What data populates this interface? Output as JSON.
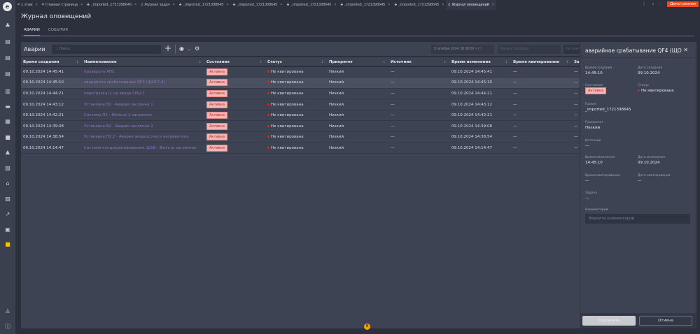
{
  "tabs": [
    {
      "label": "1 этаж",
      "icon": "floor-plan-icon"
    },
    {
      "label": "Главная страница",
      "icon": "floor-plan-icon"
    },
    {
      "label": "_imported_1721398645",
      "icon": "hierarchy-icon"
    },
    {
      "label": "Журнал задач",
      "icon": "document-icon"
    },
    {
      "label": "_imported_1721398645",
      "icon": "hierarchy-icon"
    },
    {
      "label": "_imported_1721398645",
      "icon": "hierarchy-icon"
    },
    {
      "label": "_imported_1721398645",
      "icon": "hierarchy-icon"
    },
    {
      "label": "_imported_1721398645",
      "icon": "hierarchy-icon"
    },
    {
      "label": "_imported_1721398645",
      "icon": "hierarchy-icon"
    },
    {
      "label": "Журнал оповещений",
      "icon": "document-icon",
      "active": true
    }
  ],
  "demo_label": "Демо-режим",
  "page_title": "Журнал оповещений",
  "subtabs": [
    "АВАРИИ",
    "СОБЫТИЯ"
  ],
  "toolbar": {
    "title": "Аварии",
    "search_placeholder": "Поиск",
    "date_from": "9 октября 2024, 00:00:00",
    "date_to_placeholder": "Конец периода",
    "filter_button": "Не квитированные"
  },
  "columns": [
    "Время создания",
    "Наименование",
    "Состояние",
    "Статус",
    "Приоритет",
    "Источник",
    "Время изменения",
    "Время квитирования",
    "За"
  ],
  "rows": [
    [
      "09.10.2024 14:45:41",
      "проверьте АПС",
      "Активна",
      "Не квитирована",
      "Низкий",
      "—",
      "09.10.2024 14:45:41",
      "—",
      "—"
    ],
    [
      "09.10.2024 14:45:10",
      "аварийное срабатывание QF4 (ЩО17-4)",
      "Активна",
      "Не квитирована",
      "Низкий",
      "—",
      "09.10.2024 14:45:10",
      "—",
      "—"
    ],
    [
      "09.10.2024 14:44:21",
      "перегрузка I1 на вводе ГРЩ 1",
      "Активна",
      "Не квитирована",
      "Низкий",
      "—",
      "09.10.2024 14:44:21",
      "—",
      "—"
    ],
    [
      "09.10.2024 14:43:12",
      "Установка В2 - Авария заслонки 1",
      "Активна",
      "Не квитирована",
      "Низкий",
      "—",
      "09.10.2024 14:43:12",
      "—",
      "—"
    ],
    [
      "09.10.2024 14:42:21",
      "Система П1 - Фильтр 1 загрязнен",
      "Активна",
      "Не квитирована",
      "Низкий",
      "—",
      "09.10.2024 14:42:21",
      "—",
      "—"
    ],
    [
      "09.10.2024 14:39:08",
      "Установка В2 - Авария заслонки 2",
      "Активна",
      "Не квитирована",
      "Низкий",
      "—",
      "09.10.2024 14:39:08",
      "—",
      "—"
    ],
    [
      "09.10.2024 14:38:54",
      "Установка П2.2 - Авария жидкостного нагревателя",
      "Активна",
      "Не квитирована",
      "Низкий",
      "—",
      "09.10.2024 14:38:54",
      "—",
      "—"
    ],
    [
      "09.10.2024 14:14:47",
      "Система кондиционирования. ЦОД - Фильтр загрязнен",
      "Активна",
      "Не квитирована",
      "Низкий",
      "—",
      "09.10.2024 14:14:47",
      "—",
      "—"
    ]
  ],
  "panel": {
    "title": "аварийное срабатывание QF4 (ЩО1...",
    "created_time_label": "Время создания",
    "created_time": "14:45:10",
    "created_date_label": "Дата создания",
    "created_date": "09.10.2024",
    "state_label": "Состояние",
    "state": "Активна",
    "status_label": "Статус",
    "status": "Не квитирована",
    "project_label": "Проект",
    "project": "_imported_1721398645",
    "priority_label": "Приоритет",
    "priority": "Низкий",
    "source_label": "Источник",
    "source": "—",
    "changed_time_label": "Время изменения",
    "changed_time": "14:45:10",
    "changed_date_label": "Дата изменения",
    "changed_date": "09.10.2024",
    "ack_time_label": "Время квитирования",
    "ack_time": "—",
    "ack_date_label": "Дата квитирования",
    "ack_date": "—",
    "task_label": "Задача",
    "task": "—",
    "comment_label": "Комментарий",
    "comment_placeholder": "Введите комментарий",
    "save": "Сохранить",
    "cancel": "Отмена"
  },
  "notification_count": "9",
  "colors": {
    "accent": "#8e74bf",
    "demo": "#f04a1a",
    "status_dot": "#e02020",
    "badge_bg": "#f5b5b5",
    "notification": "#f0a500"
  }
}
